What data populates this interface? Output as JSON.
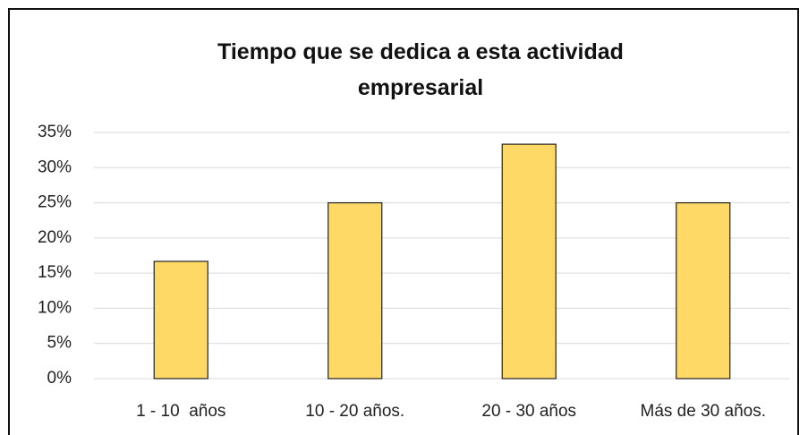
{
  "chart_data": {
    "type": "bar",
    "title": "Tiempo que se dedica a esta actividad empresarial",
    "categories": [
      "1 - 10  años",
      "10 - 20 años.",
      "20 - 30 años",
      "Más de 30 años."
    ],
    "values": [
      16.67,
      25,
      33.33,
      25
    ],
    "color": "#ffd966",
    "ylim": [
      0,
      35
    ],
    "yticks": [
      {
        "value": 0,
        "label": "0%"
      },
      {
        "value": 5,
        "label": "5%"
      },
      {
        "value": 10,
        "label": "10%"
      },
      {
        "value": 15,
        "label": "15%"
      },
      {
        "value": 20,
        "label": "20%"
      },
      {
        "value": 25,
        "label": "25%"
      },
      {
        "value": 30,
        "label": "30%"
      },
      {
        "value": 35,
        "label": "35%"
      }
    ],
    "grid": true
  }
}
